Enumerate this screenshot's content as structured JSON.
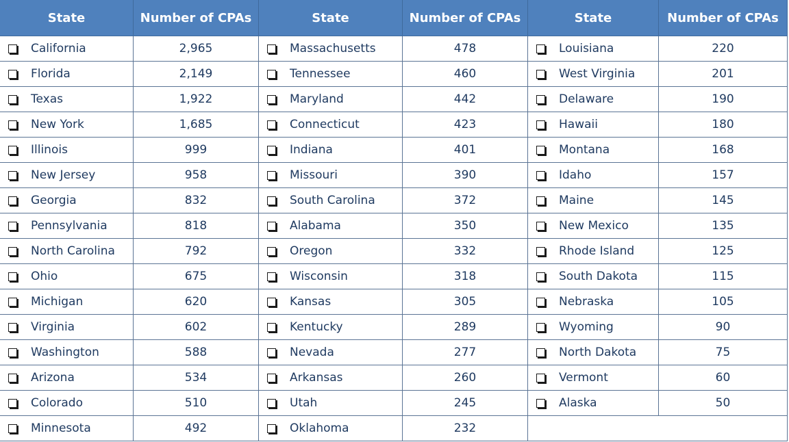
{
  "tables": [
    {
      "columns": [
        "State",
        "Number of CPAs"
      ],
      "rows": [
        [
          "California",
          "2,965"
        ],
        [
          "Florida",
          "2,149"
        ],
        [
          "Texas",
          "1,922"
        ],
        [
          "New York",
          "1,685"
        ],
        [
          "Illinois",
          "999"
        ],
        [
          "New Jersey",
          "958"
        ],
        [
          "Georgia",
          "832"
        ],
        [
          "Pennsylvania",
          "818"
        ],
        [
          "North Carolina",
          "792"
        ],
        [
          "Ohio",
          "675"
        ],
        [
          "Michigan",
          "620"
        ],
        [
          "Virginia",
          "602"
        ],
        [
          "Washington",
          "588"
        ],
        [
          "Arizona",
          "534"
        ],
        [
          "Colorado",
          "510"
        ],
        [
          "Minnesota",
          "492"
        ]
      ]
    },
    {
      "columns": [
        "State",
        "Number of CPAs"
      ],
      "rows": [
        [
          "Massachusetts",
          "478"
        ],
        [
          "Tennessee",
          "460"
        ],
        [
          "Maryland",
          "442"
        ],
        [
          "Connecticut",
          "423"
        ],
        [
          "Indiana",
          "401"
        ],
        [
          "Missouri",
          "390"
        ],
        [
          "South Carolina",
          "372"
        ],
        [
          "Alabama",
          "350"
        ],
        [
          "Oregon",
          "332"
        ],
        [
          "Wisconsin",
          "318"
        ],
        [
          "Kansas",
          "305"
        ],
        [
          "Kentucky",
          "289"
        ],
        [
          "Nevada",
          "277"
        ],
        [
          "Arkansas",
          "260"
        ],
        [
          "Utah",
          "245"
        ],
        [
          "Oklahoma",
          "232"
        ]
      ]
    },
    {
      "columns": [
        "State",
        "Number of CPAs"
      ],
      "rows": [
        [
          "Louisiana",
          "220"
        ],
        [
          "West Virginia",
          "201"
        ],
        [
          "Delaware",
          "190"
        ],
        [
          "Hawaii",
          "180"
        ],
        [
          "Montana",
          "168"
        ],
        [
          "Idaho",
          "157"
        ],
        [
          "Maine",
          "145"
        ],
        [
          "New Mexico",
          "135"
        ],
        [
          "Rhode Island",
          "125"
        ],
        [
          "South Dakota",
          "115"
        ],
        [
          "Nebraska",
          "105"
        ],
        [
          "Wyoming",
          "90"
        ],
        [
          "North Dakota",
          "75"
        ],
        [
          "Vermont",
          "60"
        ],
        [
          "Alaska",
          "50"
        ]
      ]
    }
  ]
}
